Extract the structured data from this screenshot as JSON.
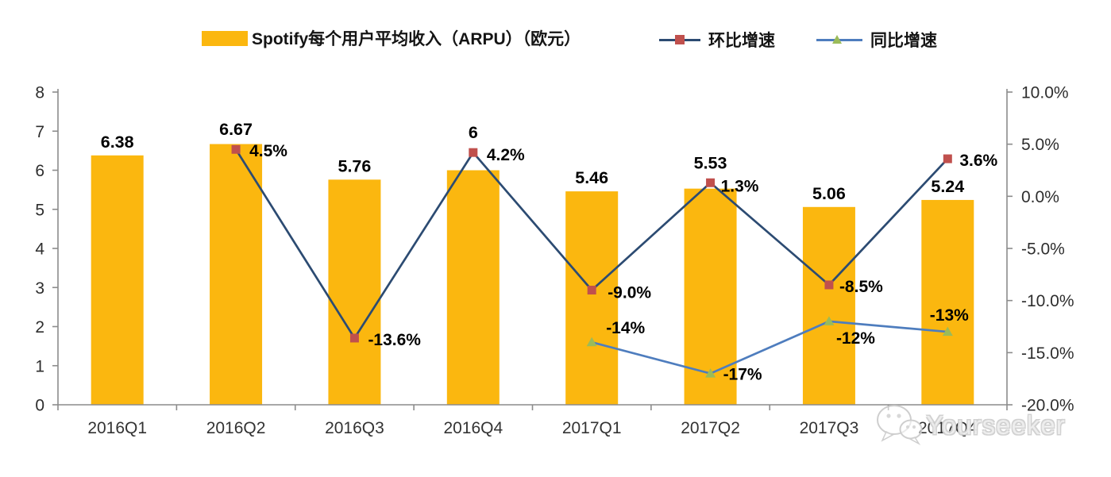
{
  "legend": {
    "bar": {
      "label": "Spotify每个用户平均收入（ARPU）（欧元）"
    },
    "qoq": {
      "label": "环比增速"
    },
    "yoy": {
      "label": "同比增速"
    }
  },
  "watermark": {
    "text": "Yourseeker",
    "icon": "wechat-icon"
  },
  "colors": {
    "bar": "#FBB70F",
    "qoq_line": "#2C4B72",
    "qoq_marker": "#C0504D",
    "yoy_line": "#4E7DBE",
    "yoy_marker": "#9BBB59",
    "axis": "#8C8C8C",
    "tick_text": "#2E2E2E",
    "x_label_text": "#333333",
    "data_label": "#000000"
  },
  "chart_data": {
    "type": "bar+line-combo",
    "title": "Spotify每个用户平均收入（ARPU）（欧元）",
    "categories": [
      "2016Q1",
      "2016Q2",
      "2016Q3",
      "2016Q4",
      "2017Q1",
      "2017Q2",
      "2017Q3",
      "2017Q4"
    ],
    "series": [
      {
        "name": "Spotify每个用户平均收入（ARPU）（欧元）",
        "type": "bar",
        "axis": "left",
        "values": [
          6.38,
          6.67,
          5.76,
          6,
          5.46,
          5.53,
          5.06,
          5.24
        ],
        "data_labels": [
          "6.38",
          "6.67",
          "5.76",
          "6",
          "5.46",
          "5.53",
          "5.06",
          "5.24"
        ]
      },
      {
        "name": "环比增速",
        "type": "line",
        "marker": "square",
        "axis": "right",
        "values": [
          null,
          4.5,
          -13.6,
          4.2,
          -9.0,
          1.3,
          -8.5,
          3.6
        ],
        "data_labels": [
          null,
          "4.5%",
          "-13.6%",
          "4.2%",
          "-9.0%",
          "1.3%",
          "-8.5%",
          "3.6%"
        ]
      },
      {
        "name": "同比增速",
        "type": "line",
        "marker": "triangle",
        "axis": "right",
        "values": [
          null,
          null,
          null,
          null,
          -14,
          -17,
          -12,
          -13
        ],
        "data_labels": [
          null,
          null,
          null,
          null,
          "-14%",
          "-17%",
          "-12%",
          "-13%"
        ]
      }
    ],
    "left_axis": {
      "min": 0,
      "max": 8,
      "tick_values": [
        0,
        1,
        2,
        3,
        4,
        5,
        6,
        7,
        8
      ],
      "tick_labels": [
        "0",
        "1",
        "2",
        "3",
        "4",
        "5",
        "6",
        "7",
        "8"
      ]
    },
    "right_axis": {
      "min": -20,
      "max": 10,
      "tick_values": [
        10,
        5,
        0,
        -5,
        -10,
        -15,
        -20
      ],
      "tick_labels": [
        "10.0%",
        "5.0%",
        "0.0%",
        "-5.0%",
        "-10.0%",
        "-15.0%",
        "-20.0%"
      ]
    },
    "grid": false,
    "legend_position": "top"
  }
}
